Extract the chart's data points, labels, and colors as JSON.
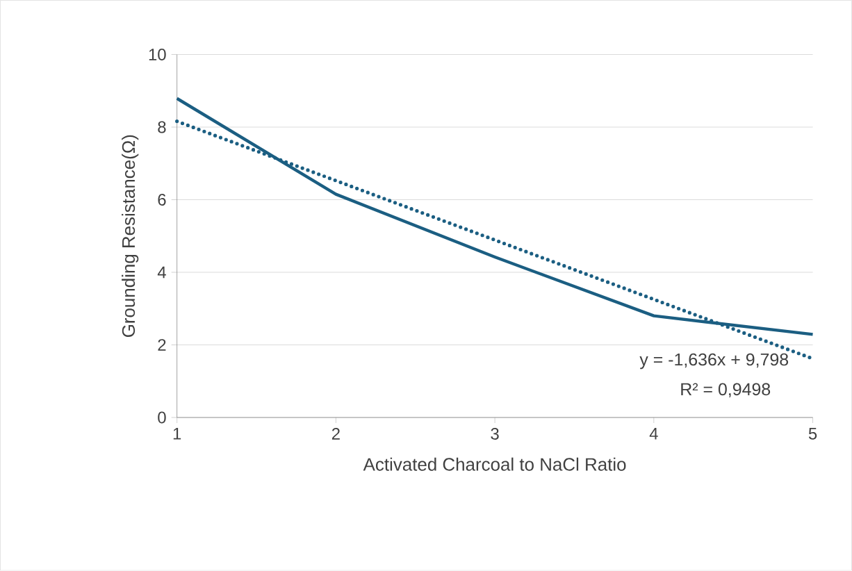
{
  "chart_data": {
    "type": "line",
    "xlabel": "Activated Charcoal to NaCl Ratio",
    "ylabel": "Grounding Resistance(Ω)",
    "x": [
      1,
      2,
      3,
      4,
      5
    ],
    "series": [
      {
        "color": "#1b5e82",
        "values": [
          8.79,
          6.15,
          4.42,
          2.8,
          2.29
        ],
        "line_style": "solid"
      },
      {
        "color": "#1b5e82",
        "x": [
          1,
          5
        ],
        "values": [
          8.16,
          1.62
        ],
        "line_style": "dotted"
      }
    ],
    "xlim": [
      1,
      5
    ],
    "xticks": [
      1,
      2,
      3,
      4,
      5
    ],
    "ylim": [
      0,
      10
    ],
    "yticks": [
      0,
      2,
      4,
      6,
      8,
      10
    ],
    "grid": "y",
    "marker": "none",
    "annotations": [
      "y = -1,636x + 9,798",
      "R² = 0,9498"
    ]
  }
}
